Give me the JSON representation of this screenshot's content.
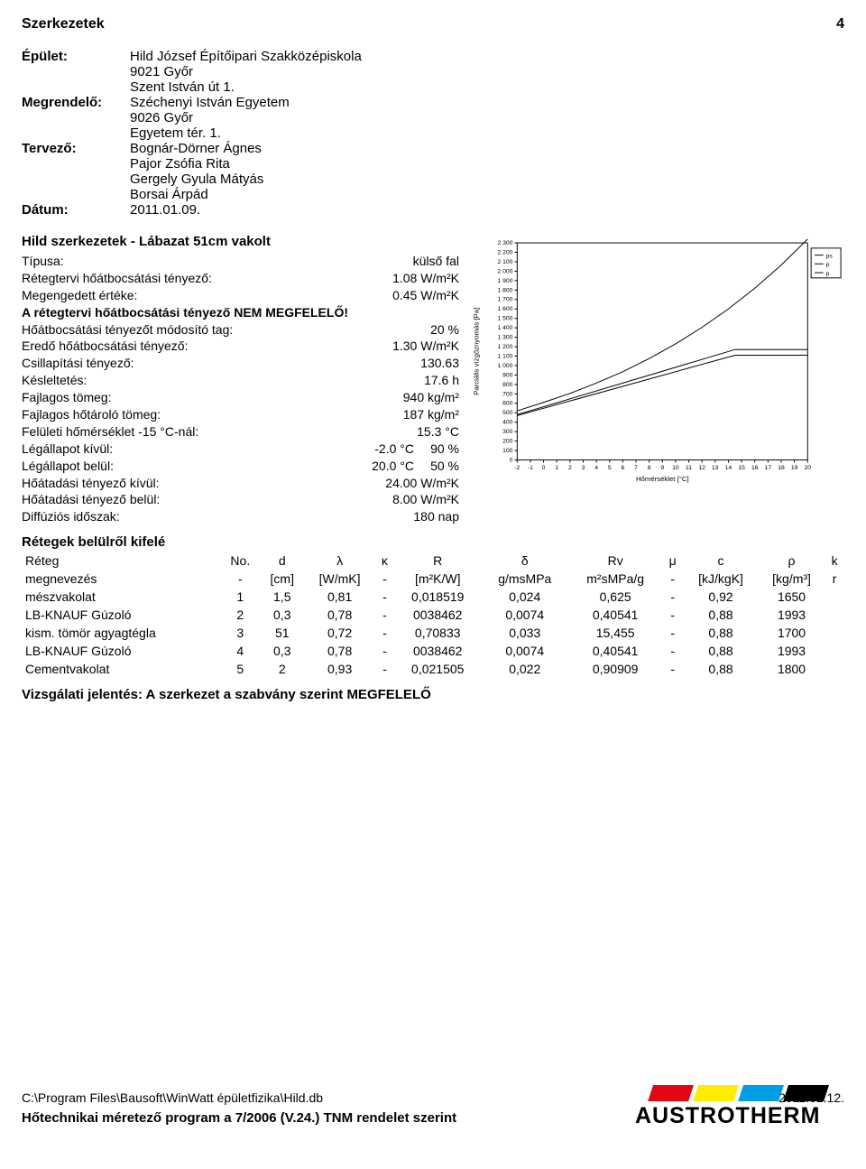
{
  "header": {
    "title": "Szerkezetek",
    "page": "4"
  },
  "meta": {
    "building_label": "Épület:",
    "building_lines": [
      "Hild József Építőipari Szakközépiskola",
      "9021 Győr",
      "Szent István út 1."
    ],
    "client_label": "Megrendelő:",
    "client_lines": [
      "Széchenyi István Egyetem",
      "9026 Győr",
      "Egyetem tér. 1."
    ],
    "designer_label": "Tervező:",
    "designer_lines": [
      "Bognár-Dörner Ágnes",
      "Pajor Zsófia Rita",
      "Gergely Gyula Mátyás",
      "Borsai Árpád"
    ],
    "date_label": "Dátum:",
    "date_value": "2011.01.09."
  },
  "section_title": "Hild szerkezetek - Lábazat 51cm vakolt",
  "props": [
    {
      "label": "Típusa:",
      "value": "külső fal"
    },
    {
      "label": "Rétegtervi hőátbocsátási tényező:",
      "value": "1.08 W/m²K"
    },
    {
      "label": "Megengedett értéke:",
      "value": "0.45 W/m²K"
    },
    {
      "label": "A rétegtervi hőátbocsátási tényező NEM MEGFELELŐ!",
      "value": "",
      "bold": true
    },
    {
      "label": "Hőátbocsátási tényezőt módosító tag:",
      "value": "20 %"
    },
    {
      "label": "Eredő hőátbocsátási tényező:",
      "value": "1.30 W/m²K"
    },
    {
      "label": "Csillapítási tényező:",
      "value": "130.63"
    },
    {
      "label": "Késleltetés:",
      "value": "17.6 h"
    },
    {
      "label": "Fajlagos tömeg:",
      "value": "940 kg/m²"
    },
    {
      "label": "Fajlagos hőtároló tömeg:",
      "value": "187 kg/m²"
    },
    {
      "label": "Felületi hőmérséklet -15 °C-nál:",
      "value": "15.3 °C"
    },
    {
      "label": "Légállapot kívül:",
      "value": "-2.0 °C",
      "extra": "90 %"
    },
    {
      "label": "Légállapot belül:",
      "value": "20.0 °C",
      "extra": "50 %"
    },
    {
      "label": "Hőátadási tényező kívül:",
      "value": "24.00 W/m²K"
    },
    {
      "label": "Hőátadási tényező belül:",
      "value": "8.00 W/m²K"
    },
    {
      "label": "Diffúziós időszak:",
      "value": "180 nap"
    }
  ],
  "chart": {
    "type": "line",
    "xlim": [
      -2,
      20
    ],
    "xtick_step": 1,
    "ylim": [
      0,
      2300
    ],
    "ytick_step": 100,
    "xlabel": "Hőmérséklet [°C]",
    "ylabel": "Parciális vízgőznyomás [Pa]",
    "background_color": "#ffffff",
    "grid_color": "#000000",
    "axis_color": "#000000",
    "axis_fontsize": 7,
    "label_fontsize": 8,
    "legend_items": [
      "ps",
      "p",
      "p"
    ],
    "series": {
      "ps": {
        "color": "#000000",
        "width": 1,
        "points": [
          [
            -2,
            520
          ],
          [
            0,
            610
          ],
          [
            2,
            705
          ],
          [
            4,
            815
          ],
          [
            6,
            935
          ],
          [
            8,
            1075
          ],
          [
            10,
            1230
          ],
          [
            12,
            1405
          ],
          [
            14,
            1600
          ],
          [
            16,
            1820
          ],
          [
            18,
            2065
          ],
          [
            20,
            2340
          ]
        ]
      },
      "p_upper": {
        "color": "#000000",
        "width": 1,
        "points": [
          [
            -2,
            480
          ],
          [
            14.5,
            1170
          ],
          [
            20,
            1170
          ]
        ]
      },
      "p_lower": {
        "color": "#000000",
        "width": 1,
        "points": [
          [
            -2,
            470
          ],
          [
            14.5,
            1110
          ],
          [
            20,
            1110
          ]
        ]
      }
    }
  },
  "layers": {
    "title": "Rétegek belülről kifelé",
    "columns": [
      "Réteg",
      "No.",
      "d",
      "λ",
      "κ",
      "R",
      "δ",
      "Rv",
      "μ",
      "c",
      "ρ",
      "k"
    ],
    "units": [
      "megnevezés",
      "-",
      "[cm]",
      "[W/mK]",
      "-",
      "[m²K/W]",
      "g/msMPa",
      "m²sMPa/g",
      "-",
      "[kJ/kgK]",
      "[kg/m³]",
      "r"
    ],
    "rows": [
      [
        "mészvakolat",
        "1",
        "1,5",
        "0,81",
        "-",
        "0,018519",
        "0,024",
        "0,625",
        "-",
        "0,92",
        "1650"
      ],
      [
        "LB-KNAUF Gúzoló",
        "2",
        "0,3",
        "0,78",
        "-",
        "0038462",
        "0,0074",
        "0,40541",
        "-",
        "0,88",
        "1993"
      ],
      [
        "kism. tömör agyagtégla",
        "3",
        "51",
        "0,72",
        "-",
        "0,70833",
        "0,033",
        "15,455",
        "-",
        "0,88",
        "1700"
      ],
      [
        "LB-KNAUF Gúzoló",
        "4",
        "0,3",
        "0,78",
        "-",
        "0038462",
        "0,0074",
        "0,40541",
        "-",
        "0,88",
        "1993"
      ],
      [
        "Cementvakolat",
        "5",
        "2",
        "0,93",
        "-",
        "0,021505",
        "0,022",
        "0,90909",
        "-",
        "0,88",
        "1800"
      ]
    ]
  },
  "verdict": "Vizsgálati jelentés: A szerkezet a szabvány szerint MEGFELELŐ",
  "footer": {
    "path": "C:\\Program Files\\Bausoft\\WinWatt épületfizika\\Hild.db",
    "date": "2011.01.12.",
    "program": "Hőtechnikai méretező program a 7/2006 (V.24.) TNM rendelet szerint",
    "logo_text": "AUSTROTHERM",
    "logo_stripe_colors": [
      "#e30613",
      "#ffed00",
      "#009fe3",
      "#000000"
    ]
  }
}
